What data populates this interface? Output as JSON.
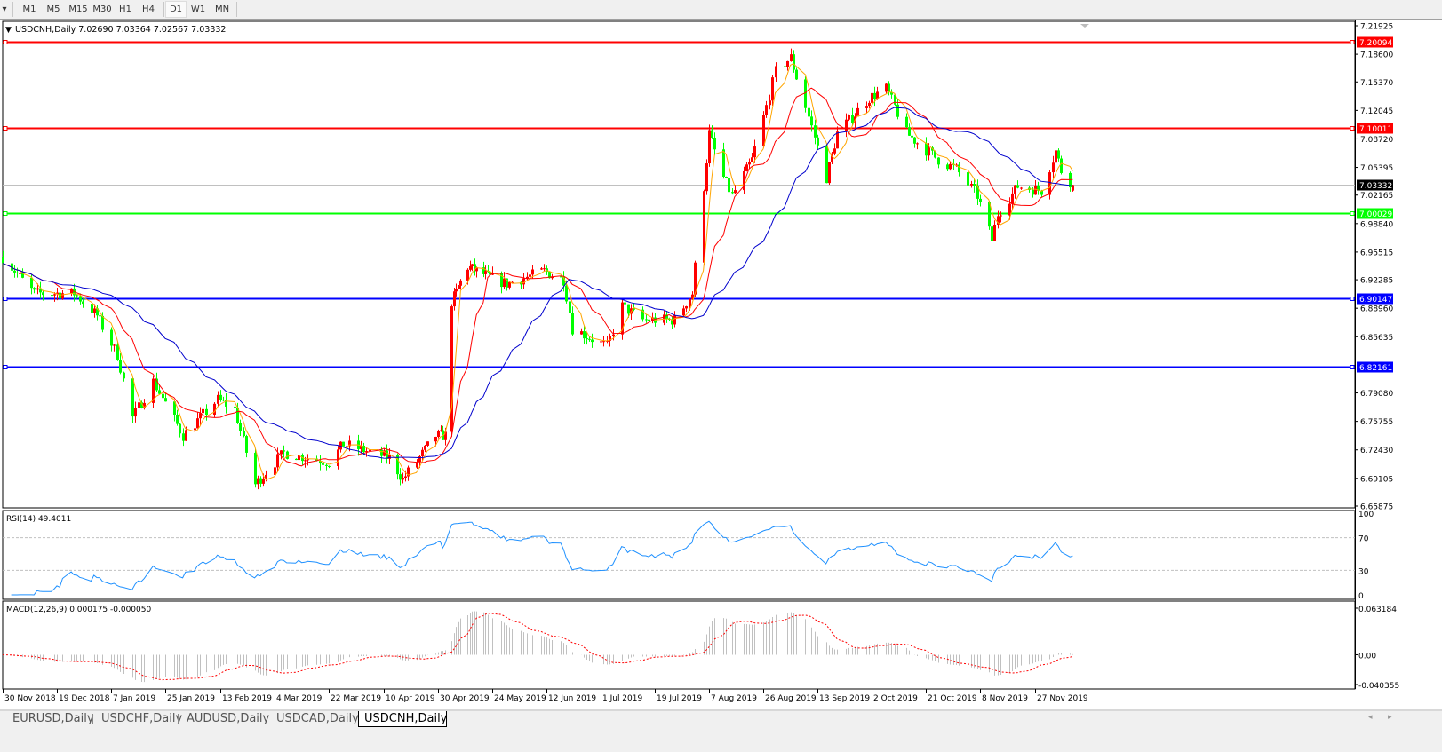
{
  "toolbar": {
    "menu_arrow": "▾",
    "timeframes": [
      "M1",
      "M5",
      "M15",
      "M30",
      "H1",
      "H4",
      "D1",
      "W1",
      "MN"
    ],
    "active_timeframe": "D1"
  },
  "chart": {
    "header": "USDCNH,Daily  7.02690 7.03364 7.02567 7.03332",
    "colors": {
      "bull_candle": "#ff0000",
      "bear_candle": "#00ff00",
      "ma_fast": "#ffa500",
      "ma_mid": "#ff0000",
      "ma_slow": "#0000cd",
      "rsi_line": "#1e90ff",
      "macd_hist": "#c0c0c0",
      "macd_signal": "#ff0000"
    },
    "price_axis_ticks": [
      "7.21925",
      "7.18600",
      "7.15370",
      "7.12045",
      "7.08720",
      "7.05395",
      "7.02165",
      "6.98840",
      "6.95515",
      "6.92285",
      "6.88960",
      "6.85635",
      "6.82161",
      "6.79080",
      "6.75755",
      "6.72430",
      "6.69105",
      "6.65875"
    ],
    "price_range": [
      6.65875,
      7.21925
    ],
    "current_price": "7.03332",
    "horizontal_lines": [
      {
        "price": "7.20094",
        "color": "#ff0000"
      },
      {
        "price": "7.10011",
        "color": "#ff0000"
      },
      {
        "price": "7.00029",
        "color": "#00ff00"
      },
      {
        "price": "6.90147",
        "color": "#0000ff"
      },
      {
        "price": "6.82161",
        "color": "#0000ff"
      }
    ],
    "date_axis_labels": [
      "30 Nov 2018",
      "19 Dec 2018",
      "7 Jan 2019",
      "25 Jan 2019",
      "13 Feb 2019",
      "4 Mar 2019",
      "22 Mar 2019",
      "10 Apr 2019",
      "30 Apr 2019",
      "24 May 2019",
      "12 Jun 2019",
      "1 Jul 2019",
      "19 Jul 2019",
      "7 Aug 2019",
      "26 Aug 2019",
      "13 Sep 2019",
      "2 Oct 2019",
      "21 Oct 2019",
      "8 Nov 2019",
      "27 Nov 2019"
    ]
  },
  "rsi": {
    "label": "RSI(14) 49.4011",
    "ticks": [
      "100",
      "70",
      "30",
      "0"
    ],
    "levels": [
      70,
      30
    ]
  },
  "macd": {
    "label": "MACD(12,26,9) 0.000175 -0.000050",
    "ticks": [
      "0.063184",
      "0.00",
      "-0.040355"
    ],
    "range": [
      -0.040355,
      0.063184
    ]
  },
  "chart_data": {
    "type": "candlestick",
    "symbol": "USDCNH",
    "timeframe": "Daily",
    "last_bar": {
      "open": 7.0269,
      "high": 7.03364,
      "low": 7.02567,
      "close": 7.03332
    },
    "approx_closes": [
      [
        "2018-11-30",
        6.949
      ],
      [
        "2018-12-11",
        6.907
      ],
      [
        "2018-12-25",
        6.907
      ],
      [
        "2019-01-02",
        6.881
      ],
      [
        "2019-01-09",
        6.835
      ],
      [
        "2019-01-14",
        6.762
      ],
      [
        "2019-01-21",
        6.804
      ],
      [
        "2019-01-31",
        6.741
      ],
      [
        "2019-02-12",
        6.783
      ],
      [
        "2019-02-18",
        6.772
      ],
      [
        "2019-02-25",
        6.684
      ],
      [
        "2019-03-07",
        6.721
      ],
      [
        "2019-03-22",
        6.71
      ],
      [
        "2019-03-27",
        6.731
      ],
      [
        "2019-04-12",
        6.715
      ],
      [
        "2019-04-17",
        6.69
      ],
      [
        "2019-04-29",
        6.741
      ],
      [
        "2019-05-03",
        6.741
      ],
      [
        "2019-05-06",
        6.897
      ],
      [
        "2019-05-13",
        6.938
      ],
      [
        "2019-05-29",
        6.918
      ],
      [
        "2019-06-11",
        6.933
      ],
      [
        "2019-06-18",
        6.923
      ],
      [
        "2019-06-21",
        6.866
      ],
      [
        "2019-07-03",
        6.845
      ],
      [
        "2019-07-08",
        6.892
      ],
      [
        "2019-07-15",
        6.876
      ],
      [
        "2019-07-26",
        6.876
      ],
      [
        "2019-08-01",
        6.907
      ],
      [
        "2019-08-07",
        7.094
      ],
      [
        "2019-08-12",
        7.042
      ],
      [
        "2019-08-15",
        7.021
      ],
      [
        "2019-08-22",
        7.063
      ],
      [
        "2019-08-27",
        7.125
      ],
      [
        "2019-08-30",
        7.166
      ],
      [
        "2019-09-04",
        7.182
      ],
      [
        "2019-09-09",
        7.125
      ],
      [
        "2019-09-16",
        7.042
      ],
      [
        "2019-09-20",
        7.094
      ],
      [
        "2019-10-01",
        7.135
      ],
      [
        "2019-10-07",
        7.146
      ],
      [
        "2019-10-10",
        7.125
      ],
      [
        "2019-10-14",
        7.094
      ],
      [
        "2019-10-18",
        7.083
      ],
      [
        "2019-10-25",
        7.063
      ],
      [
        "2019-10-31",
        7.052
      ],
      [
        "2019-11-07",
        7.021
      ],
      [
        "2019-11-12",
        6.969
      ],
      [
        "2019-11-14",
        7.0
      ],
      [
        "2019-11-21",
        7.032
      ],
      [
        "2019-11-29",
        7.027
      ],
      [
        "2019-12-04",
        7.073
      ],
      [
        "2019-12-06",
        7.05
      ],
      [
        "2019-12-10",
        7.03332
      ]
    ]
  },
  "tabs": [
    {
      "label": "EURUSD,Daily"
    },
    {
      "label": "USDCHF,Daily"
    },
    {
      "label": "AUDUSD,Daily"
    },
    {
      "label": "USDCAD,Daily"
    },
    {
      "label": "USDCNH,Daily",
      "active": true
    }
  ],
  "tab_scroll": {
    "left": "◂",
    "right": "▸"
  }
}
